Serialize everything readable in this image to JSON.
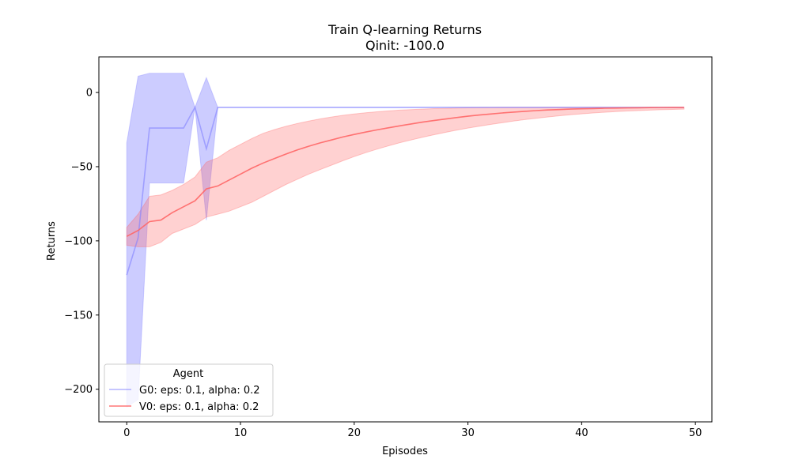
{
  "chart_data": {
    "type": "line",
    "title": "Train Q-learning Returns",
    "subtitle": "Qinit: -100.0",
    "xlabel": "Episodes",
    "ylabel": "Returns",
    "xlim": [
      -2.45,
      51.45
    ],
    "ylim": [
      -222,
      24
    ],
    "xticks": [
      0,
      10,
      20,
      30,
      40,
      50
    ],
    "yticks": [
      0,
      -50,
      -100,
      -150,
      -200
    ],
    "xtick_labels": [
      "0",
      "10",
      "20",
      "30",
      "40",
      "50"
    ],
    "ytick_labels": [
      "0",
      "−50",
      "−100",
      "−150",
      "−200"
    ],
    "legend": {
      "title": "Agent",
      "placement": "lower-left"
    },
    "x": [
      0,
      1,
      2,
      3,
      4,
      5,
      6,
      7,
      8,
      9,
      10,
      11,
      12,
      13,
      14,
      15,
      16,
      17,
      18,
      19,
      20,
      21,
      22,
      23,
      24,
      25,
      26,
      27,
      28,
      29,
      30,
      31,
      32,
      33,
      34,
      35,
      36,
      37,
      38,
      39,
      40,
      41,
      42,
      43,
      44,
      45,
      46,
      47,
      48,
      49
    ],
    "series": [
      {
        "name": "G0: eps: 0.1, alpha: 0.2",
        "color": "#8080ff",
        "values": [
          -123,
          -98,
          -24,
          -24,
          -24,
          -24,
          -10,
          -38,
          -10,
          -10,
          -10,
          -10,
          -10,
          -10,
          -10,
          -10,
          -10,
          -10,
          -10,
          -10,
          -10,
          -10,
          -10,
          -10,
          -10,
          -10,
          -10,
          -10,
          -10,
          -10,
          -10,
          -10,
          -10,
          -10,
          -10,
          -10,
          -10,
          -10,
          -10,
          -10,
          -10,
          -10,
          -10,
          -10,
          -10,
          -10,
          -10,
          -10,
          -10,
          -10
        ],
        "upper": [
          -34,
          11,
          13,
          13,
          13,
          13,
          -10,
          10,
          -10,
          -10,
          -10,
          -10,
          -10,
          -10,
          -10,
          -10,
          -10,
          -10,
          -10,
          -10,
          -10,
          -10,
          -10,
          -10,
          -10,
          -10,
          -10,
          -10,
          -10,
          -10,
          -10,
          -10,
          -10,
          -10,
          -10,
          -10,
          -10,
          -10,
          -10,
          -10,
          -10,
          -10,
          -10,
          -10,
          -10,
          -10,
          -10,
          -10,
          -10,
          -10
        ],
        "lower": [
          -212,
          -207,
          -61,
          -61,
          -61,
          -61,
          -10,
          -86,
          -10,
          -10,
          -10,
          -10,
          -10,
          -10,
          -10,
          -10,
          -10,
          -10,
          -10,
          -10,
          -10,
          -10,
          -10,
          -10,
          -10,
          -10,
          -10,
          -10,
          -10,
          -10,
          -10,
          -10,
          -10,
          -10,
          -10,
          -10,
          -10,
          -10,
          -10,
          -10,
          -10,
          -10,
          -10,
          -10,
          -10,
          -10,
          -10,
          -10,
          -10,
          -10
        ]
      },
      {
        "name": "V0: eps: 0.1, alpha: 0.2",
        "color": "#ff6666",
        "values": [
          -97,
          -93,
          -87,
          -86,
          -81,
          -77,
          -73,
          -65,
          -63,
          -59,
          -55,
          -51,
          -47.5,
          -44.5,
          -41.5,
          -38.7,
          -36.2,
          -34,
          -32,
          -30,
          -28.3,
          -26.7,
          -25.2,
          -23.8,
          -22.5,
          -21.2,
          -20,
          -18.9,
          -17.9,
          -16.9,
          -16,
          -15.2,
          -14.5,
          -13.8,
          -13.2,
          -12.7,
          -12.2,
          -11.8,
          -11.5,
          -11.2,
          -11,
          -10.8,
          -10.6,
          -10.5,
          -10.4,
          -10.3,
          -10.2,
          -10.1,
          -10.05,
          -10
        ],
        "upper": [
          -91,
          -82,
          -70,
          -69,
          -66,
          -62,
          -57,
          -47,
          -44,
          -39,
          -35,
          -31,
          -27.5,
          -25,
          -22.8,
          -20.9,
          -19.3,
          -17.8,
          -16.5,
          -15.4,
          -14.5,
          -13.7,
          -13,
          -12.4,
          -11.9,
          -11.5,
          -11.2,
          -10.9,
          -10.7,
          -10.5,
          -10.35,
          -10.2,
          -10.1,
          -10,
          -10,
          -10,
          -10,
          -10,
          -10,
          -10,
          -10,
          -10,
          -10,
          -10,
          -10,
          -10,
          -10,
          -10,
          -10,
          -10
        ],
        "lower": [
          -103,
          -104,
          -104,
          -101,
          -95,
          -92,
          -89,
          -84,
          -82,
          -80,
          -77,
          -74,
          -70,
          -66,
          -62,
          -58.5,
          -55,
          -52,
          -49,
          -46,
          -43.2,
          -40.6,
          -38.2,
          -36,
          -33.9,
          -32,
          -30.2,
          -28.5,
          -26.9,
          -25.4,
          -24,
          -22.7,
          -21.5,
          -20.4,
          -19.3,
          -18.3,
          -17.4,
          -16.5,
          -15.7,
          -15,
          -14.4,
          -13.8,
          -13.3,
          -12.9,
          -12.5,
          -12.2,
          -11.9,
          -11.6,
          -11.4,
          -11.2
        ]
      }
    ]
  }
}
